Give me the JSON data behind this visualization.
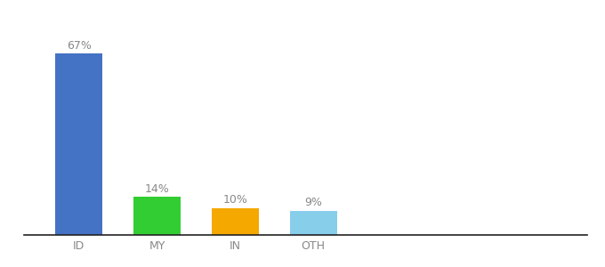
{
  "categories": [
    "ID",
    "MY",
    "IN",
    "OTH"
  ],
  "values": [
    67,
    14,
    10,
    9
  ],
  "bar_colors": [
    "#4472c4",
    "#32cd32",
    "#f5a800",
    "#87ceeb"
  ],
  "labels": [
    "67%",
    "14%",
    "10%",
    "9%"
  ],
  "ylim": [
    0,
    75
  ],
  "background_color": "#ffffff",
  "label_fontsize": 9,
  "tick_fontsize": 9,
  "bar_width": 0.6,
  "x_positions": [
    0,
    1,
    2,
    3
  ],
  "label_color": "#888888",
  "tick_color": "#888888"
}
